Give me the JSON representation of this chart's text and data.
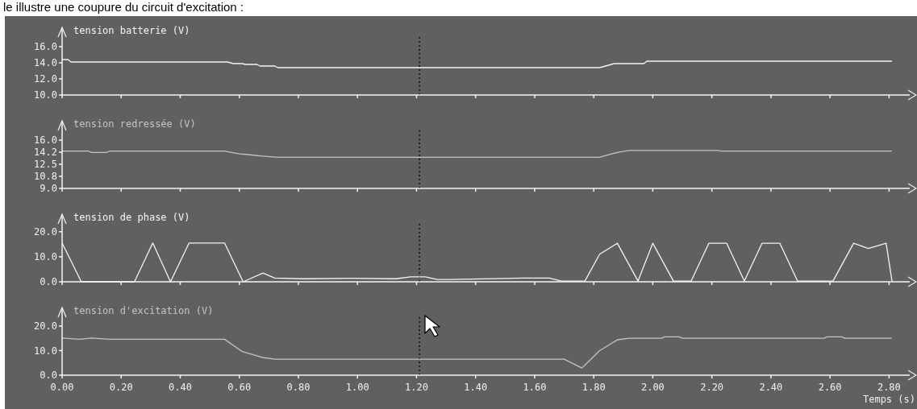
{
  "chart_data": [
    {
      "type": "line",
      "ylabel": "tension batterie (V)",
      "annotations": [
        "le illustre une coupure du circuit d'excitation :"
      ],
      "x": [
        0,
        0.02,
        0.03,
        0.56,
        0.58,
        0.61,
        0.62,
        0.66,
        0.67,
        0.72,
        0.73,
        1.82,
        1.85,
        1.87,
        1.97,
        1.98,
        2.81
      ],
      "series": [
        {
          "color": "#f4f4f4",
          "values": [
            14.4,
            14.4,
            14.1,
            14.1,
            13.9,
            13.9,
            13.8,
            13.8,
            13.6,
            13.6,
            13.4,
            13.4,
            13.7,
            13.9,
            13.9,
            14.2,
            14.2
          ]
        }
      ],
      "xlim": [
        0,
        2.87
      ],
      "xticks": [
        {
          "value": 0,
          "label": null
        },
        {
          "value": 0.2,
          "label": null
        },
        {
          "value": 0.4,
          "label": null
        },
        {
          "value": 0.6,
          "label": null
        },
        {
          "value": 0.8,
          "label": null
        },
        {
          "value": 1,
          "label": null
        },
        {
          "value": 1.2,
          "label": null
        },
        {
          "value": 1.4,
          "label": null
        },
        {
          "value": 1.6,
          "label": null
        },
        {
          "value": 1.8,
          "label": null
        },
        {
          "value": 2,
          "label": null
        },
        {
          "value": 2.2,
          "label": null
        },
        {
          "value": 2.4,
          "label": null
        },
        {
          "value": 2.6,
          "label": null
        },
        {
          "value": 2.8,
          "label": null
        }
      ],
      "ylim": [
        10,
        18.4
      ],
      "yticks": [
        {
          "value": 10,
          "label": "10.0"
        },
        {
          "value": 12,
          "label": "12.0"
        },
        {
          "value": 14,
          "label": "14.0"
        },
        {
          "value": 16,
          "label": "16.0"
        }
      ],
      "tick_labels": "y",
      "ref_lines": [
        {
          "axis": "x",
          "value": 1.21,
          "line_style": "dotted",
          "color": "#000000"
        }
      ]
    },
    {
      "type": "line",
      "ylabel": "tension redressée (V)",
      "x": [
        0,
        0.09,
        0.1,
        0.15,
        0.16,
        0.55,
        0.6,
        0.63,
        0.67,
        0.73,
        1.82,
        1.86,
        1.89,
        1.92,
        2.22,
        2.23,
        2.81
      ],
      "series": [
        {
          "color": "#c4c4c4",
          "values": [
            14.4,
            14.4,
            14.2,
            14.2,
            14.4,
            14.4,
            14,
            13.9,
            13.7,
            13.5,
            13.5,
            14,
            14.3,
            14.5,
            14.5,
            14.4,
            14.4
          ]
        }
      ],
      "xlim": [
        0,
        2.87
      ],
      "xticks": [
        {
          "value": 0,
          "label": null
        },
        {
          "value": 0.2,
          "label": null
        },
        {
          "value": 0.4,
          "label": null
        },
        {
          "value": 0.6,
          "label": null
        },
        {
          "value": 0.8,
          "label": null
        },
        {
          "value": 1,
          "label": null
        },
        {
          "value": 1.2,
          "label": null
        },
        {
          "value": 1.4,
          "label": null
        },
        {
          "value": 1.6,
          "label": null
        },
        {
          "value": 1.8,
          "label": null
        },
        {
          "value": 2,
          "label": null
        },
        {
          "value": 2.2,
          "label": null
        },
        {
          "value": 2.4,
          "label": null
        },
        {
          "value": 2.6,
          "label": null
        },
        {
          "value": 2.8,
          "label": null
        }
      ],
      "ylim": [
        9,
        18.8
      ],
      "yticks": [
        {
          "value": 9,
          "label": "9.0"
        },
        {
          "value": 10.75,
          "label": "10.8"
        },
        {
          "value": 12.5,
          "label": "12.5"
        },
        {
          "value": 14.25,
          "label": "14.2"
        },
        {
          "value": 16,
          "label": "16.0"
        }
      ],
      "tick_labels": "y",
      "ref_lines": [
        {
          "axis": "x",
          "value": 1.21,
          "line_style": "dotted",
          "color": "#000000"
        }
      ]
    },
    {
      "type": "line",
      "ylabel": "tension de phase (V)",
      "x": [
        0,
        0.065,
        0.245,
        0.307,
        0.367,
        0.43,
        0.55,
        0.613,
        0.68,
        0.72,
        0.82,
        0.98,
        1.13,
        1.18,
        1.23,
        1.27,
        1.32,
        1.56,
        1.65,
        1.69,
        1.77,
        1.82,
        1.88,
        1.95,
        2.0,
        2.07,
        2.13,
        2.19,
        2.25,
        2.31,
        2.37,
        2.43,
        2.49,
        2.61,
        2.68,
        2.73,
        2.79,
        2.81
      ],
      "series": [
        {
          "color": "#f4f4f4",
          "values": [
            15.5,
            0,
            0,
            15.5,
            0,
            15.5,
            15.5,
            0,
            3.5,
            1.5,
            1.2,
            1.4,
            1.2,
            2,
            2,
            0.9,
            0.9,
            1.5,
            1.5,
            0.3,
            0.3,
            11,
            15.4,
            0.3,
            15.4,
            0.3,
            0.3,
            15.4,
            15.4,
            0.3,
            15.4,
            15.4,
            0.3,
            0.3,
            15.4,
            13.3,
            15.4,
            0.3
          ]
        }
      ],
      "xlim": [
        0,
        2.87
      ],
      "xticks": [
        {
          "value": 0,
          "label": null
        },
        {
          "value": 0.2,
          "label": null
        },
        {
          "value": 0.4,
          "label": null
        },
        {
          "value": 0.6,
          "label": null
        },
        {
          "value": 0.8,
          "label": null
        },
        {
          "value": 1,
          "label": null
        },
        {
          "value": 1.2,
          "label": null
        },
        {
          "value": 1.4,
          "label": null
        },
        {
          "value": 1.6,
          "label": null
        },
        {
          "value": 1.8,
          "label": null
        },
        {
          "value": 2,
          "label": null
        },
        {
          "value": 2.2,
          "label": null
        },
        {
          "value": 2.4,
          "label": null
        },
        {
          "value": 2.6,
          "label": null
        },
        {
          "value": 2.8,
          "label": null
        }
      ],
      "ylim": [
        0,
        27
      ],
      "yticks": [
        {
          "value": 0,
          "label": "0.0"
        },
        {
          "value": 10,
          "label": "10.0"
        },
        {
          "value": 20,
          "label": "20.0"
        }
      ],
      "tick_labels": "y",
      "ref_lines": [
        {
          "axis": "x",
          "value": 1.21,
          "line_style": "dotted",
          "color": "#000000"
        }
      ]
    },
    {
      "type": "line",
      "ylabel": "tension d'excitation (V)",
      "xlabel": "Temps (s)",
      "x": [
        0,
        0.06,
        0.1,
        0.16,
        0.55,
        0.61,
        0.68,
        0.72,
        1.7,
        1.76,
        1.82,
        1.88,
        1.92,
        2.03,
        2.04,
        2.09,
        2.1,
        2.58,
        2.59,
        2.64,
        2.65,
        2.81
      ],
      "series": [
        {
          "color": "#c4c4c4",
          "values": [
            15.1,
            14.6,
            15.1,
            14.6,
            14.6,
            9.6,
            7.2,
            6.5,
            6.5,
            2.9,
            10,
            14.4,
            15,
            15,
            15.6,
            15.6,
            15,
            15,
            15.6,
            15.6,
            15,
            15
          ]
        }
      ],
      "xlim": [
        0,
        2.87
      ],
      "xticks": [
        {
          "value": 0,
          "label": "0.00"
        },
        {
          "value": 0.2,
          "label": "0.20"
        },
        {
          "value": 0.4,
          "label": "0.40"
        },
        {
          "value": 0.6,
          "label": "0.60"
        },
        {
          "value": 0.8,
          "label": "0.80"
        },
        {
          "value": 1,
          "label": "1.00"
        },
        {
          "value": 1.2,
          "label": "1.20"
        },
        {
          "value": 1.4,
          "label": "1.40"
        },
        {
          "value": 1.6,
          "label": "1.60"
        },
        {
          "value": 1.8,
          "label": "1.80"
        },
        {
          "value": 2,
          "label": "2.00"
        },
        {
          "value": 2.2,
          "label": "2.20"
        },
        {
          "value": 2.4,
          "label": "2.40"
        },
        {
          "value": 2.6,
          "label": "2.60"
        },
        {
          "value": 2.8,
          "label": "2.80"
        }
      ],
      "ylim": [
        0,
        27.5
      ],
      "yticks": [
        {
          "value": 0,
          "label": "0.0"
        },
        {
          "value": 10,
          "label": "10.0"
        },
        {
          "value": 20,
          "label": "20.0"
        }
      ],
      "ref_lines": [
        {
          "axis": "x",
          "value": 1.21,
          "line_style": "dotted",
          "color": "#000000"
        }
      ]
    }
  ]
}
